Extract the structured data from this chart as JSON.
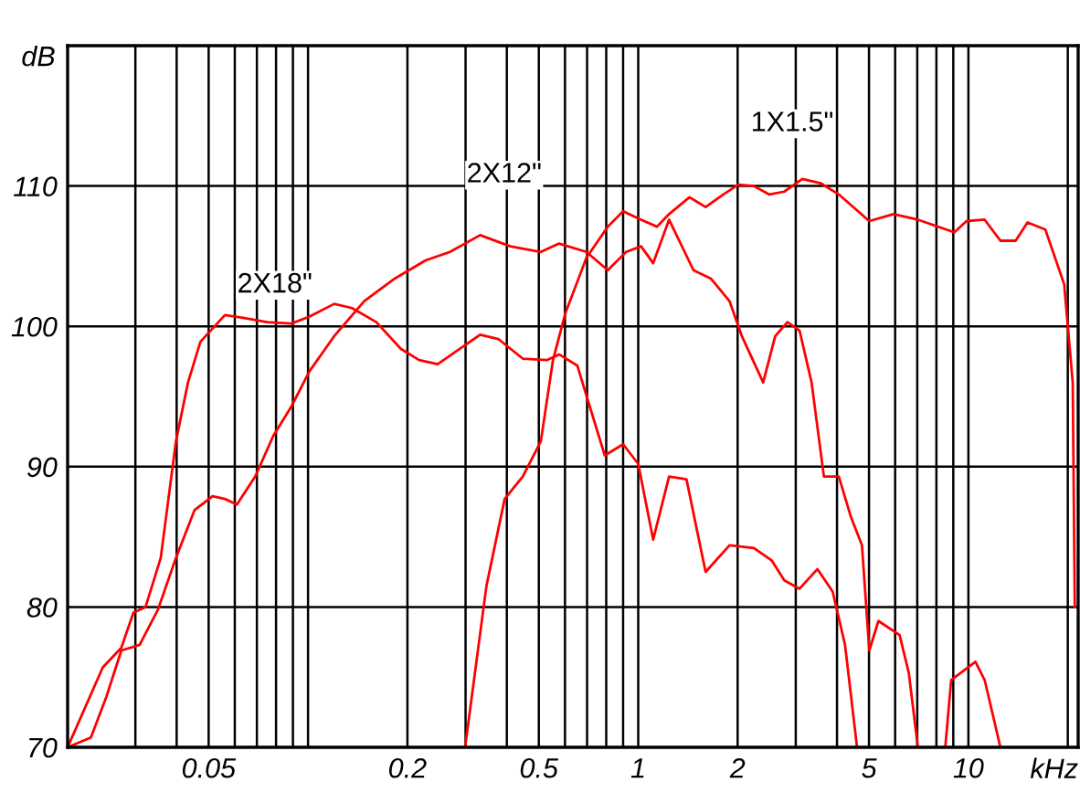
{
  "chart_data": {
    "type": "line",
    "xlabel": "kHz",
    "ylabel": "dB",
    "log": "x",
    "grid": true,
    "marker": "none",
    "line_style": "solid",
    "xlim": [
      0.0187,
      21.5
    ],
    "ylim": [
      70,
      120
    ],
    "xticks": [
      {
        "value": 0.03,
        "label": null
      },
      {
        "value": 0.04,
        "label": null
      },
      0.05,
      {
        "value": 0.06,
        "label": null
      },
      {
        "value": 0.07,
        "label": null
      },
      {
        "value": 0.08,
        "label": null
      },
      {
        "value": 0.09,
        "label": null
      },
      {
        "value": 0.1,
        "label": null
      },
      0.2,
      {
        "value": 0.3,
        "label": null
      },
      {
        "value": 0.4,
        "label": null
      },
      0.5,
      {
        "value": 0.6,
        "label": null
      },
      {
        "value": 0.7,
        "label": null
      },
      {
        "value": 0.8,
        "label": null
      },
      {
        "value": 0.9,
        "label": null
      },
      1,
      2,
      {
        "value": 3,
        "label": null
      },
      {
        "value": 4,
        "label": null
      },
      5,
      {
        "value": 6,
        "label": null
      },
      {
        "value": 7,
        "label": null
      },
      {
        "value": 8,
        "label": null
      },
      {
        "value": 9,
        "label": null
      },
      10,
      {
        "value": 20,
        "label": null
      }
    ],
    "yticks": [
      70,
      80,
      90,
      100,
      110
    ],
    "series": [
      {
        "color": "#ff0000",
        "x": [
          0.0187,
          0.0239,
          0.0272,
          0.0296,
          0.0322,
          0.0358,
          0.0398,
          0.0433,
          0.0472,
          0.056,
          0.0635,
          0.0753,
          0.0891,
          0.101,
          0.12,
          0.136,
          0.161,
          0.191,
          0.217,
          0.247,
          0.28,
          0.332,
          0.377,
          0.447,
          0.53,
          0.576,
          0.654,
          0.713,
          0.792,
          0.9,
          1.0,
          1.11,
          1.24,
          1.4,
          1.6,
          1.89,
          2.24,
          2.54,
          2.77,
          3.08,
          3.49,
          3.88,
          4.23,
          4.6
        ],
        "values": [
          70,
          75.7,
          77.1,
          79.6,
          80.0,
          83.5,
          91.8,
          96.0,
          98.9,
          100.8,
          100.6,
          100.3,
          100.2,
          100.7,
          101.6,
          101.3,
          100.3,
          98.4,
          97.6,
          97.3,
          98.2,
          99.4,
          99.1,
          97.7,
          97.6,
          98.0,
          97.2,
          94.3,
          90.8,
          91.6,
          90.2,
          84.8,
          89.3,
          89.1,
          82.5,
          84.4,
          84.2,
          83.3,
          81.9,
          81.3,
          82.7,
          81.1,
          77.3,
          70
        ]
      },
      {
        "color": "#ff0000",
        "x": [
          0.0187,
          0.022,
          0.0245,
          0.0272,
          0.0309,
          0.0351,
          0.0398,
          0.0453,
          0.0514,
          0.056,
          0.0609,
          0.0692,
          0.0785,
          0.0891,
          0.101,
          0.12,
          0.148,
          0.183,
          0.227,
          0.269,
          0.332,
          0.41,
          0.507,
          0.576,
          0.697,
          0.809,
          0.919,
          1.02,
          1.11,
          1.24,
          1.47,
          1.66,
          1.89,
          2.06,
          2.39,
          2.6,
          2.83,
          3.08,
          3.35,
          3.65,
          4.05,
          4.41,
          4.76,
          5.01,
          5.34,
          6.19,
          6.6,
          7.03,
          7.65,
          8.51,
          8.87,
          10.5,
          11.2,
          12.5
        ],
        "values": [
          70,
          70.7,
          73.6,
          76.9,
          77.3,
          79.8,
          83.5,
          86.9,
          87.9,
          87.7,
          87.3,
          89.3,
          92.2,
          94.3,
          96.8,
          99.3,
          101.8,
          103.4,
          104.7,
          105.3,
          106.5,
          105.7,
          105.3,
          105.9,
          105.3,
          104.0,
          105.3,
          105.7,
          104.5,
          107.6,
          104.0,
          103.4,
          101.8,
          99.3,
          96.0,
          99.3,
          100.3,
          99.7,
          96.0,
          89.3,
          89.3,
          86.4,
          84.4,
          76.9,
          79.0,
          78.0,
          75.3,
          70,
          null,
          70,
          74.8,
          76.1,
          74.8,
          70
        ]
      },
      {
        "color": "#ff0000",
        "x": [
          0.299,
          0.347,
          0.394,
          0.447,
          0.507,
          0.552,
          0.601,
          0.697,
          0.809,
          0.9,
          1.02,
          1.14,
          1.24,
          1.43,
          1.6,
          1.81,
          2.01,
          2.24,
          2.49,
          2.77,
          3.14,
          3.57,
          4.05,
          5.01,
          5.93,
          7.03,
          9.07,
          9.87,
          11.2,
          12.5,
          13.9,
          15.1,
          17.1,
          19.5,
          20.7,
          21.0
        ],
        "values": [
          70,
          81.5,
          87.7,
          89.3,
          91.8,
          97.6,
          100.9,
          104.9,
          107.1,
          108.2,
          107.6,
          107.1,
          108.0,
          109.2,
          108.5,
          109.4,
          110.1,
          110.0,
          109.4,
          109.6,
          110.5,
          110.2,
          109.4,
          107.5,
          108.0,
          107.6,
          106.7,
          107.5,
          107.6,
          106.1,
          106.1,
          107.4,
          106.9,
          103.0,
          96.0,
          80
        ]
      }
    ],
    "annotations": [
      "2X18\"",
      "2X12\"",
      "1X1.5\""
    ]
  }
}
